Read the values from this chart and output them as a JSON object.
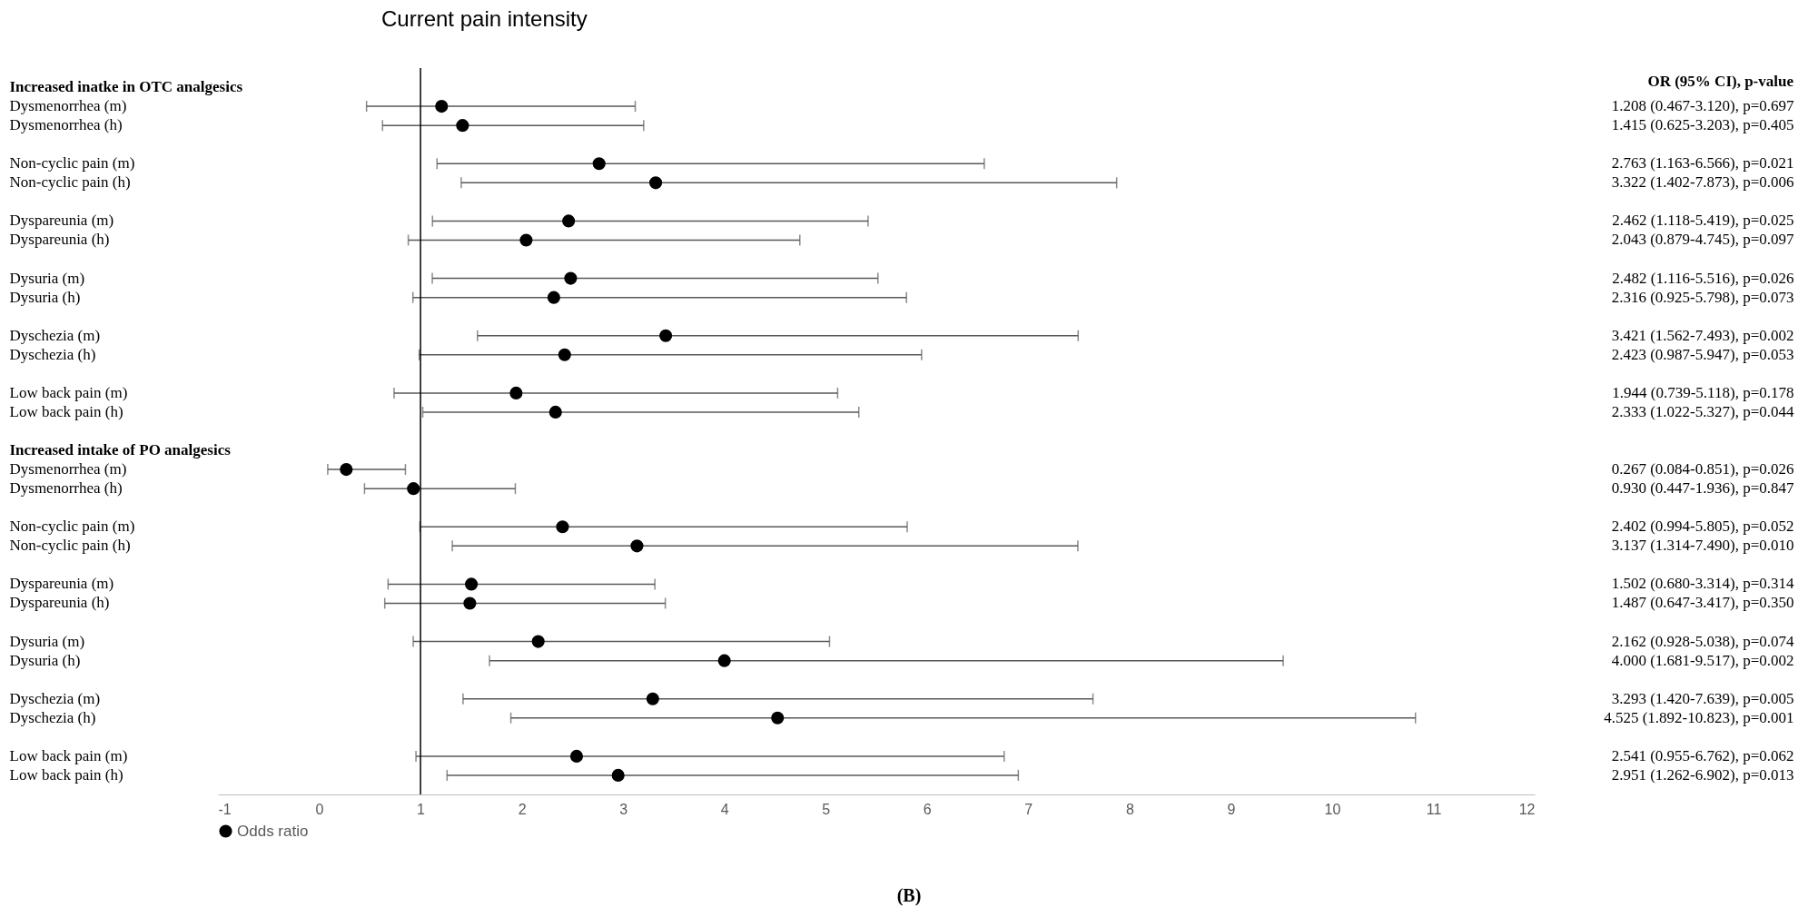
{
  "chart_data": {
    "type": "scatter",
    "orientation": "horizontal",
    "title": "Current pain intensity",
    "categories": [
      "Increased inatke in OTC analgesics",
      "Dysmenorrhea (m)",
      "Dysmenorrhea (h)",
      null,
      "Non-cyclic pain (m)",
      "Non-cyclic pain (h)",
      null,
      "Dyspareunia (m)",
      "Dyspareunia (h)",
      null,
      "Dysuria (m)",
      "Dysuria (h)",
      null,
      "Dyschezia (m)",
      "Dyschezia (h)",
      null,
      "Low back pain (m)",
      "Low back pain (h)",
      null,
      "Increased intake of PO analgesics",
      "Dysmenorrhea (m)",
      "Dysmenorrhea (h)",
      null,
      "Non-cyclic pain (m)",
      "Non-cyclic pain (h)",
      null,
      "Dyspareunia (m)",
      "Dyspareunia (h)",
      null,
      "Dysuria (m)",
      "Dysuria (h)",
      null,
      "Dyschezia (m)",
      "Dyschezia (h)",
      null,
      "Low back pain (m)",
      "Low back pain (h)"
    ],
    "series": [
      {
        "name": "Odds ratio",
        "color": "#000000",
        "values": [
          null,
          1.208,
          1.415,
          null,
          2.763,
          3.322,
          null,
          2.462,
          2.043,
          null,
          2.482,
          2.316,
          null,
          3.421,
          2.423,
          null,
          1.944,
          2.333,
          null,
          null,
          0.267,
          0.93,
          null,
          2.402,
          3.137,
          null,
          1.502,
          1.487,
          null,
          2.162,
          4.0,
          null,
          3.293,
          4.525,
          null,
          2.541,
          2.951
        ],
        "errors": [
          null,
          [
            0.467,
            3.12
          ],
          [
            0.625,
            3.203
          ],
          null,
          [
            1.163,
            6.566
          ],
          [
            1.402,
            7.873
          ],
          null,
          [
            1.118,
            5.419
          ],
          [
            0.879,
            4.745
          ],
          null,
          [
            1.116,
            5.516
          ],
          [
            0.925,
            5.798
          ],
          null,
          [
            1.562,
            7.493
          ],
          [
            0.987,
            5.947
          ],
          null,
          [
            0.739,
            5.118
          ],
          [
            1.022,
            5.327
          ],
          null,
          null,
          [
            0.084,
            0.851
          ],
          [
            0.447,
            1.936
          ],
          null,
          [
            0.994,
            5.805
          ],
          [
            1.314,
            7.49
          ],
          null,
          [
            0.68,
            3.314
          ],
          [
            0.647,
            3.417
          ],
          null,
          [
            0.928,
            5.038
          ],
          [
            1.681,
            9.517
          ],
          null,
          [
            1.42,
            7.639
          ],
          [
            1.892,
            10.823
          ],
          null,
          [
            0.955,
            6.762
          ],
          [
            1.262,
            6.902
          ]
        ],
        "value_labels": [
          null,
          "1.208 (0.467-3.120), p=0.697",
          "1.415 (0.625-3.203), p=0.405",
          null,
          "2.763 (1.163-6.566), p=0.021",
          "3.322 (1.402-7.873), p=0.006",
          null,
          "2.462 (1.118-5.419), p=0.025",
          "2.043 (0.879-4.745), p=0.097",
          null,
          "2.482 (1.116-5.516), p=0.026",
          "2.316 (0.925-5.798), p=0.073",
          null,
          "3.421 (1.562-7.493), p=0.002",
          "2.423 (0.987-5.947), p=0.053",
          null,
          "1.944 (0.739-5.118), p=0.178",
          "2.333 (1.022-5.327), p=0.044",
          null,
          null,
          "0.267 (0.084-0.851), p=0.026",
          "0.930 (0.447-1.936), p=0.847",
          null,
          "2.402 (0.994-5.805), p=0.052",
          "3.137 (1.314-7.490), p=0.010",
          null,
          "1.502 (0.680-3.314), p=0.314",
          "1.487 (0.647-3.417), p=0.350",
          null,
          "2.162 (0.928-5.038), p=0.074",
          "4.000 (1.681-9.517), p=0.002",
          null,
          "3.293 (1.420-7.639), p=0.005",
          "4.525 (1.892-10.823), p=0.001",
          null,
          "2.541 (0.955-6.762), p=0.062",
          "2.951 (1.262-6.902), p=0.013"
        ]
      }
    ],
    "xlim": [
      -1,
      12
    ],
    "xticks": [
      -1,
      0,
      1,
      2,
      3,
      4,
      5,
      6,
      7,
      8,
      9,
      10,
      11,
      12
    ],
    "ref_lines": [
      {
        "axis": "x",
        "value": 1
      }
    ],
    "legend": "bottom",
    "grid": false,
    "marker": "circle",
    "annotations": [
      "OR (95% CI), p-value",
      "(B)"
    ]
  }
}
